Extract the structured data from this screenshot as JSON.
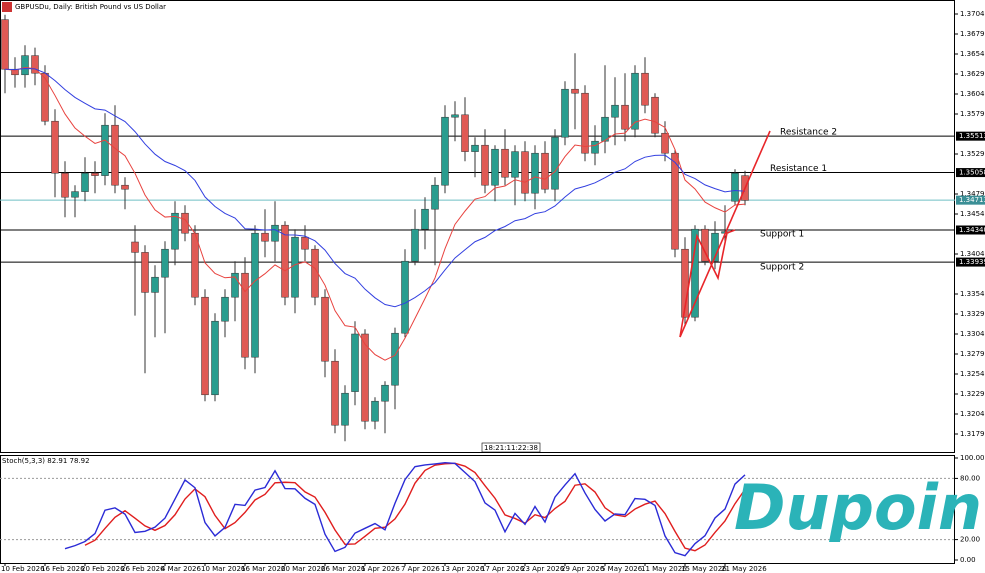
{
  "header": {
    "title": "GBPUSDu, Daily: British Pound vs US Dollar",
    "clock": "18:21:11:22:38",
    "logo": "Dupoin"
  },
  "chart_data": {
    "type": "candlestick",
    "ylim": [
      1.31565,
      1.37215
    ],
    "yticks": [
      {
        "value": 1.3704,
        "label": "1.37040"
      },
      {
        "value": 1.3679,
        "label": "1.36790"
      },
      {
        "value": 1.3654,
        "label": "1.36540"
      },
      {
        "value": 1.3629,
        "label": "1.36290"
      },
      {
        "value": 1.3604,
        "label": "1.36040"
      },
      {
        "value": 1.3579,
        "label": "1.35790"
      },
      {
        "value": 1.3529,
        "label": "1.35290"
      },
      {
        "value": 1.3479,
        "label": "1.34790"
      },
      {
        "value": 1.3454,
        "label": "1.34540"
      },
      {
        "value": 1.3404,
        "label": "1.34040"
      },
      {
        "value": 1.3354,
        "label": "1.33540"
      },
      {
        "value": 1.3329,
        "label": "1.33290"
      },
      {
        "value": 1.3304,
        "label": "1.33040"
      },
      {
        "value": 1.3279,
        "label": "1.32790"
      },
      {
        "value": 1.3254,
        "label": "1.32540"
      },
      {
        "value": 1.3229,
        "label": "1.32290"
      },
      {
        "value": 1.3204,
        "label": "1.32040"
      },
      {
        "value": 1.3179,
        "label": "1.31790"
      }
    ],
    "levels": [
      {
        "name": "Resistance 2",
        "value": 1.35513
      },
      {
        "name": "Resistance 1",
        "value": 1.35058
      },
      {
        "name": "Support 1",
        "value": {
          "value": 1.3434,
          "label": "1.34340"
        }
      },
      {
        "name": "Support 2",
        "value": 1.33939
      }
    ],
    "current_price": 1.34713,
    "up_color": "#2a9d8f",
    "down_color": "#e05a55",
    "fast_ma_color": "#e8433f",
    "slow_ma_color": "#3340e0",
    "xticks": [
      {
        "value": 0,
        "label": "10 Feb 2026"
      },
      {
        "value": 4,
        "label": "16 Feb 2026"
      },
      {
        "value": 8,
        "label": "20 Feb 2026"
      },
      {
        "value": 12,
        "label": "26 Feb 2026"
      },
      {
        "value": 16,
        "label": "4 Mar 2026"
      },
      {
        "value": 20,
        "label": "10 Mar 2026"
      },
      {
        "value": 24,
        "label": "16 Mar 2026"
      },
      {
        "value": 28,
        "label": "20 Mar 2026"
      },
      {
        "value": 32,
        "label": "26 Mar 2026"
      },
      {
        "value": 36,
        "label": "1 Apr 2026"
      },
      {
        "value": 40,
        "label": "7 Apr 2026"
      },
      {
        "value": 44,
        "label": "13 Apr 2026"
      },
      {
        "value": 48,
        "label": "17 Apr 2026"
      },
      {
        "value": 52,
        "label": "23 Apr 2026"
      },
      {
        "value": 56,
        "label": "29 Apr 2026"
      },
      {
        "value": 60,
        "label": "5 May 2026"
      },
      {
        "value": 64,
        "label": "11 May 2026"
      },
      {
        "value": 68,
        "label": "15 May 2026"
      },
      {
        "value": 72,
        "label": "21 May 2026"
      }
    ],
    "candles": [
      {
        "o": 1.3697,
        "h": 1.3703,
        "l": 1.3605,
        "c": 1.3635
      },
      {
        "o": 1.3635,
        "h": 1.365,
        "l": 1.3612,
        "c": 1.3628
      },
      {
        "o": 1.3628,
        "h": 1.3665,
        "l": 1.3612,
        "c": 1.3652
      },
      {
        "o": 1.3652,
        "h": 1.3662,
        "l": 1.3615,
        "c": 1.363
      },
      {
        "o": 1.363,
        "h": 1.364,
        "l": 1.3565,
        "c": 1.357
      },
      {
        "o": 1.357,
        "h": 1.3585,
        "l": 1.3475,
        "c": 1.3505
      },
      {
        "o": 1.3505,
        "h": 1.352,
        "l": 1.345,
        "c": 1.3475
      },
      {
        "o": 1.3475,
        "h": 1.349,
        "l": 1.345,
        "c": 1.3482
      },
      {
        "o": 1.3482,
        "h": 1.3525,
        "l": 1.347,
        "c": 1.3505
      },
      {
        "o": 1.3505,
        "h": 1.352,
        "l": 1.348,
        "c": 1.3502
      },
      {
        "o": 1.3502,
        "h": 1.358,
        "l": 1.349,
        "c": 1.3565
      },
      {
        "o": 1.3565,
        "h": 1.359,
        "l": 1.348,
        "c": 1.349
      },
      {
        "o": 1.349,
        "h": 1.35,
        "l": 1.346,
        "c": 1.3485
      },
      {
        "o": 1.3419,
        "h": 1.344,
        "l": 1.3327,
        "c": 1.3406
      },
      {
        "o": 1.3406,
        "h": 1.3415,
        "l": 1.3255,
        "c": 1.3356
      },
      {
        "o": 1.3356,
        "h": 1.339,
        "l": 1.33,
        "c": 1.3375
      },
      {
        "o": 1.3375,
        "h": 1.342,
        "l": 1.3305,
        "c": 1.341
      },
      {
        "o": 1.341,
        "h": 1.347,
        "l": 1.339,
        "c": 1.3455
      },
      {
        "o": 1.3455,
        "h": 1.3465,
        "l": 1.342,
        "c": 1.343
      },
      {
        "o": 1.343,
        "h": 1.344,
        "l": 1.334,
        "c": 1.335
      },
      {
        "o": 1.335,
        "h": 1.336,
        "l": 1.322,
        "c": 1.3228
      },
      {
        "o": 1.3228,
        "h": 1.333,
        "l": 1.322,
        "c": 1.332
      },
      {
        "o": 1.332,
        "h": 1.336,
        "l": 1.33,
        "c": 1.335
      },
      {
        "o": 1.335,
        "h": 1.3395,
        "l": 1.332,
        "c": 1.338
      },
      {
        "o": 1.338,
        "h": 1.34,
        "l": 1.326,
        "c": 1.3275
      },
      {
        "o": 1.3275,
        "h": 1.344,
        "l": 1.3255,
        "c": 1.343
      },
      {
        "o": 1.343,
        "h": 1.346,
        "l": 1.34,
        "c": 1.342
      },
      {
        "o": 1.342,
        "h": 1.347,
        "l": 1.3395,
        "c": 1.344
      },
      {
        "o": 1.344,
        "h": 1.3445,
        "l": 1.334,
        "c": 1.335
      },
      {
        "o": 1.335,
        "h": 1.3435,
        "l": 1.333,
        "c": 1.3425
      },
      {
        "o": 1.3425,
        "h": 1.344,
        "l": 1.3395,
        "c": 1.341
      },
      {
        "o": 1.341,
        "h": 1.3415,
        "l": 1.334,
        "c": 1.335
      },
      {
        "o": 1.335,
        "h": 1.336,
        "l": 1.325,
        "c": 1.327
      },
      {
        "o": 1.327,
        "h": 1.3285,
        "l": 1.318,
        "c": 1.319
      },
      {
        "o": 1.319,
        "h": 1.324,
        "l": 1.317,
        "c": 1.323
      },
      {
        "o": 1.3232,
        "h": 1.332,
        "l": 1.3215,
        "c": 1.3304
      },
      {
        "o": 1.3304,
        "h": 1.331,
        "l": 1.3185,
        "c": 1.3195
      },
      {
        "o": 1.3195,
        "h": 1.3225,
        "l": 1.3185,
        "c": 1.322
      },
      {
        "o": 1.322,
        "h": 1.3245,
        "l": 1.318,
        "c": 1.324
      },
      {
        "o": 1.324,
        "h": 1.3312,
        "l": 1.321,
        "c": 1.3305
      },
      {
        "o": 1.3305,
        "h": 1.341,
        "l": 1.33,
        "c": 1.3395
      },
      {
        "o": 1.3395,
        "h": 1.346,
        "l": 1.339,
        "c": 1.3435
      },
      {
        "o": 1.3435,
        "h": 1.3475,
        "l": 1.341,
        "c": 1.346
      },
      {
        "o": 1.346,
        "h": 1.35,
        "l": 1.339,
        "c": 1.349
      },
      {
        "o": 1.349,
        "h": 1.359,
        "l": 1.348,
        "c": 1.3575
      },
      {
        "o": 1.3575,
        "h": 1.3595,
        "l": 1.3545,
        "c": 1.3578
      },
      {
        "o": 1.3578,
        "h": 1.36,
        "l": 1.352,
        "c": 1.3532
      },
      {
        "o": 1.3532,
        "h": 1.355,
        "l": 1.35,
        "c": 1.354
      },
      {
        "o": 1.354,
        "h": 1.356,
        "l": 1.348,
        "c": 1.349
      },
      {
        "o": 1.349,
        "h": 1.354,
        "l": 1.347,
        "c": 1.3535
      },
      {
        "o": 1.3535,
        "h": 1.356,
        "l": 1.349,
        "c": 1.35
      },
      {
        "o": 1.35,
        "h": 1.354,
        "l": 1.3465,
        "c": 1.3532
      },
      {
        "o": 1.3532,
        "h": 1.3545,
        "l": 1.347,
        "c": 1.348
      },
      {
        "o": 1.348,
        "h": 1.354,
        "l": 1.346,
        "c": 1.353
      },
      {
        "o": 1.353,
        "h": 1.3545,
        "l": 1.348,
        "c": 1.3485
      },
      {
        "o": 1.3485,
        "h": 1.356,
        "l": 1.347,
        "c": 1.355
      },
      {
        "o": 1.355,
        "h": 1.362,
        "l": 1.354,
        "c": 1.361
      },
      {
        "o": 1.361,
        "h": 1.3655,
        "l": 1.356,
        "c": 1.3605
      },
      {
        "o": 1.3605,
        "h": 1.3615,
        "l": 1.352,
        "c": 1.353
      },
      {
        "o": 1.353,
        "h": 1.3565,
        "l": 1.3515,
        "c": 1.3545
      },
      {
        "o": 1.3545,
        "h": 1.364,
        "l": 1.353,
        "c": 1.3575
      },
      {
        "o": 1.3575,
        "h": 1.3625,
        "l": 1.354,
        "c": 1.359
      },
      {
        "o": 1.359,
        "h": 1.363,
        "l": 1.3545,
        "c": 1.356
      },
      {
        "o": 1.356,
        "h": 1.364,
        "l": 1.355,
        "c": 1.363
      },
      {
        "o": 1.363,
        "h": 1.365,
        "l": 1.358,
        "c": 1.359
      },
      {
        "o": 1.36,
        "h": 1.3605,
        "l": 1.355,
        "c": 1.3555
      },
      {
        "o": 1.3555,
        "h": 1.357,
        "l": 1.352,
        "c": 1.353
      },
      {
        "o": 1.353,
        "h": 1.3535,
        "l": 1.34,
        "c": 1.341
      },
      {
        "o": 1.341,
        "h": 1.3425,
        "l": 1.3315,
        "c": 1.3325
      },
      {
        "o": 1.3325,
        "h": 1.344,
        "l": 1.332,
        "c": 1.3435
      },
      {
        "o": 1.3435,
        "h": 1.344,
        "l": 1.339,
        "c": 1.3395
      },
      {
        "o": 1.3395,
        "h": 1.3445,
        "l": 1.3385,
        "c": 1.343
      },
      {
        "o": 1.343,
        "h": 1.3465,
        "l": 1.342,
        "c": 1.3432
      },
      {
        "o": 1.347,
        "h": 1.351,
        "l": 1.3465,
        "c": 1.3505
      },
      {
        "o": 1.3502,
        "h": 1.3508,
        "l": 1.3465,
        "c": 1.3471
      }
    ],
    "stoch": {
      "label": "Stoch(5,3,3) 82.91 78.92",
      "ylim": [
        0,
        100
      ],
      "yticks": [
        {
          "value": 100,
          "label": "100.00"
        },
        {
          "value": 80,
          "label": "80.00"
        },
        {
          "value": 20,
          "label": "20.00"
        },
        {
          "value": 0,
          "label": "0.00"
        }
      ],
      "main_color": "#2b2bd6",
      "signal_color": "#e01e1e"
    }
  }
}
